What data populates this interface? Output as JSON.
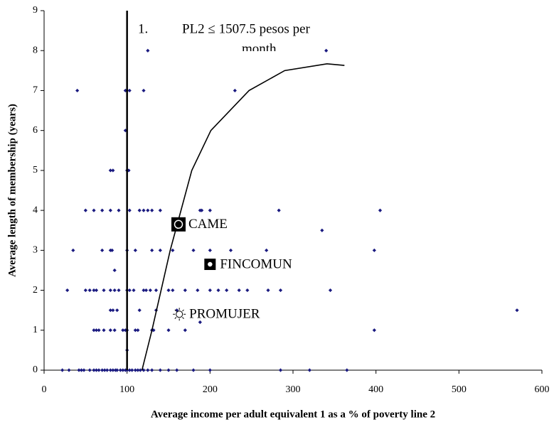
{
  "chart_data": {
    "type": "scatter",
    "xlabel": "Average income per adult equivalent 1 as a % of poverty line 2",
    "ylabel": "Average length of membership (years)",
    "annotation": [
      "1.",
      "PL2 ≤ 1507.5 pesos per",
      "month"
    ],
    "color": "#1a1a80",
    "x": [
      22,
      30,
      42,
      45,
      48,
      55,
      60,
      63,
      66,
      70,
      73,
      76,
      80,
      83,
      86,
      88,
      92,
      95,
      98,
      100,
      103,
      106,
      110,
      113,
      116,
      120,
      125,
      130,
      140,
      150,
      160,
      180,
      200,
      285,
      320,
      365,
      100,
      60,
      63,
      66,
      72,
      80,
      85,
      95,
      98,
      100,
      110,
      113,
      130,
      132,
      150,
      170,
      398,
      188,
      80,
      83,
      88,
      115,
      135,
      160,
      570,
      28,
      50,
      55,
      60,
      63,
      72,
      80,
      85,
      90,
      100,
      103,
      108,
      120,
      123,
      128,
      135,
      150,
      155,
      170,
      185,
      200,
      210,
      220,
      235,
      245,
      270,
      285,
      345,
      85,
      35,
      70,
      80,
      82,
      100,
      110,
      130,
      140,
      155,
      180,
      200,
      225,
      268,
      398,
      335,
      50,
      60,
      70,
      80,
      90,
      103,
      115,
      120,
      125,
      130,
      140,
      188,
      190,
      200,
      283,
      405,
      80,
      83,
      100,
      102,
      98,
      40,
      98,
      100,
      103,
      120,
      230,
      125,
      340
    ],
    "y": [
      0,
      0,
      0,
      0,
      0,
      0,
      0,
      0,
      0,
      0,
      0,
      0,
      0,
      0,
      0,
      0,
      0,
      0,
      0,
      0,
      0,
      0,
      0,
      0,
      0,
      0,
      0,
      0,
      0,
      0,
      0,
      0,
      0,
      0,
      0,
      0,
      0.5,
      1,
      1,
      1,
      1,
      1,
      1,
      1,
      1,
      1,
      1,
      1,
      1,
      1,
      1,
      1,
      1,
      1.2,
      1.5,
      1.5,
      1.5,
      1.5,
      1.5,
      1.5,
      1.5,
      2,
      2,
      2,
      2,
      2,
      2,
      2,
      2,
      2,
      2,
      2,
      2,
      2,
      2,
      2,
      2,
      2,
      2,
      2,
      2,
      2,
      2,
      2,
      2,
      2,
      2,
      2,
      2,
      2.5,
      3,
      3,
      3,
      3,
      3,
      3,
      3,
      3,
      3,
      3,
      3,
      3,
      3,
      3,
      3.5,
      4,
      4,
      4,
      4,
      4,
      4,
      4,
      4,
      4,
      4,
      4,
      4,
      4,
      4,
      4,
      4,
      5,
      5,
      5,
      5,
      6,
      7,
      7,
      7,
      7,
      7,
      7,
      8,
      8
    ],
    "labeled_points": [
      {
        "name": "CAME",
        "x": 162,
        "y": 3.65,
        "marker": "square-circle"
      },
      {
        "name": "FINCOMUN",
        "x": 200,
        "y": 2.65,
        "marker": "square-dot"
      },
      {
        "name": "PROMUJER",
        "x": 163,
        "y": 1.4,
        "marker": "sun"
      }
    ],
    "vline_x": 100,
    "curve": {
      "x": [
        118,
        130,
        141,
        152,
        165,
        178,
        201,
        247,
        290,
        341,
        362
      ],
      "y": [
        0,
        1,
        2,
        3,
        4,
        5,
        6,
        7,
        7.5,
        7.67,
        7.63
      ]
    },
    "xlim": [
      0,
      600
    ],
    "xticks": [
      0,
      100,
      200,
      300,
      400,
      500,
      600
    ],
    "ylim": [
      0,
      9
    ],
    "yticks": [
      0,
      1,
      2,
      3,
      4,
      5,
      6,
      7,
      8,
      9
    ],
    "grid": false
  }
}
